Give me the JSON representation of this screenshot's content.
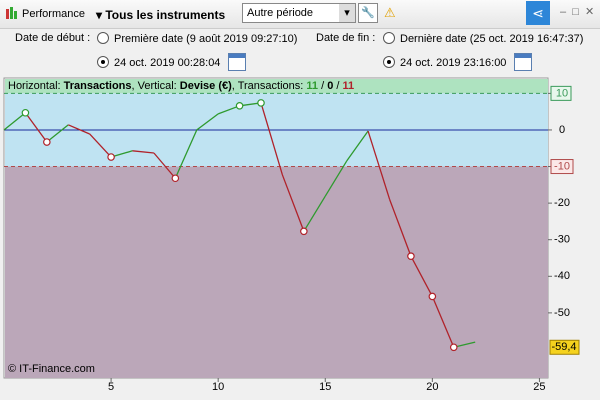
{
  "toolbar": {
    "app": "Performance",
    "instruments": "Tous les instruments",
    "period": "Autre période"
  },
  "dates": {
    "start_label": "Date de début :",
    "start_first": "Première date (9 août 2019 09:27:10)",
    "start_custom": "24 oct. 2019 00:28:04",
    "end_label": "Date de fin :",
    "end_last": "Dernière date (25 oct. 2019 16:47:37)",
    "end_custom": "24 oct. 2019 23:16:00"
  },
  "chart_data": {
    "type": "line",
    "info": [
      "Horizontal: ",
      "Transactions",
      ", Vertical: ",
      "Devise (€)",
      ", Transactions: ",
      11,
      " / ",
      0,
      " / ",
      11
    ],
    "x": [
      0,
      1,
      2,
      3,
      4,
      5,
      6,
      7,
      8,
      9,
      10,
      11,
      12,
      13,
      14,
      15,
      16,
      17,
      18,
      19,
      20,
      21,
      22
    ],
    "values": [
      0,
      4.7,
      -3.3,
      1.4,
      -1.1,
      -7.4,
      -5.7,
      -6.3,
      -13.2,
      0,
      4.4,
      6.6,
      7.4,
      -12.3,
      -27.7,
      -18.1,
      -8.5,
      -0.3,
      -18.9,
      -34.5,
      -45.5,
      -59.4,
      -58
    ],
    "markers": [
      1,
      2,
      5,
      8,
      11,
      12,
      14,
      19,
      20,
      21
    ],
    "up_color": "#2e9a2e",
    "down_color": "#b0222a",
    "xlim": [
      0,
      25.4
    ],
    "xticks": [
      5,
      10,
      15,
      20,
      25
    ],
    "ylim": [
      -67.8,
      14.2
    ],
    "yticks": [
      10,
      0,
      -10,
      -20,
      -30,
      -40,
      -50
    ],
    "upper_threshold": 10,
    "lower_threshold": -10,
    "last": {
      "value": -59.4,
      "label": "-59,4"
    },
    "watermark": "© IT-Finance.com"
  }
}
